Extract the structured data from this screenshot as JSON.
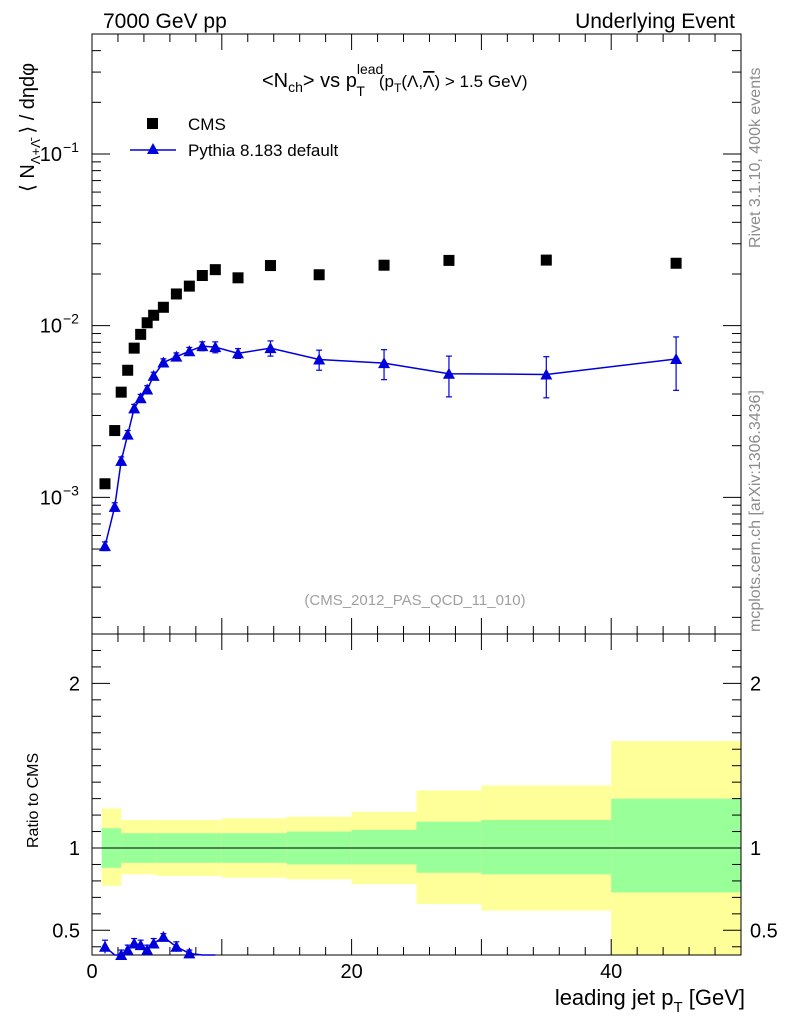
{
  "header": {
    "left": "7000 GeV pp",
    "right": "Underlying Event"
  },
  "side": {
    "rivet": "Rivet 3.1.10,  400k events",
    "mcplots": "mcplots.cern.ch [arXiv:1306.3436]"
  },
  "chart_data": {
    "type": "scatter",
    "title": "<N_ch> vs p_T^lead (p_T(Λ,Λ̄) > 1.5 GeV)",
    "analysis": "(CMS_2012_PAS_QCD_11_010)",
    "xlabel": "leading jet p_T [GeV]",
    "ylabel_main": "⟨ N_Λ+Λ̄ ⟩ / dηdφ",
    "ylabel_ratio": "Ratio to CMS",
    "xlim": [
      0,
      50
    ],
    "ylim_main": [
      0.00016,
      0.5
    ],
    "yscale_main": "log",
    "ylim_ratio": [
      0.35,
      2.3
    ],
    "x_ticks": [
      "0",
      "20",
      "40"
    ],
    "main_y_ticks": [
      {
        "value": 0.1,
        "base": "10",
        "exp": "−1"
      },
      {
        "value": 0.01,
        "base": "10",
        "exp": "−2"
      },
      {
        "value": 0.001,
        "base": "10",
        "exp": "−3"
      }
    ],
    "ratio_y_ticks": [
      "0.5",
      "1",
      "2"
    ],
    "legend": {
      "position": "top-left",
      "entries": [
        {
          "label": "CMS",
          "marker": "square",
          "color": "#000000"
        },
        {
          "label": "Pythia 8.183 default",
          "marker": "triangle",
          "color": "#0000dd"
        }
      ]
    },
    "series": [
      {
        "name": "CMS",
        "color": "#000000",
        "x": [
          1.0,
          1.75,
          2.25,
          2.75,
          3.25,
          3.75,
          4.25,
          4.75,
          5.5,
          6.5,
          7.5,
          8.5,
          9.5,
          11.25,
          13.75,
          17.5,
          22.5,
          27.5,
          35,
          45
        ],
        "y": [
          0.0012,
          0.00245,
          0.0041,
          0.0055,
          0.0074,
          0.0089,
          0.0104,
          0.0115,
          0.0128,
          0.0153,
          0.017,
          0.0196,
          0.0212,
          0.019,
          0.0224,
          0.0198,
          0.0225,
          0.024,
          0.0241,
          0.0231
        ]
      },
      {
        "name": "Pythia 8.183 default",
        "color": "#0000dd",
        "x": [
          1.0,
          1.75,
          2.25,
          2.75,
          3.25,
          3.75,
          4.25,
          4.75,
          5.5,
          6.5,
          7.5,
          8.5,
          9.5,
          11.25,
          13.75,
          17.5,
          22.5,
          27.5,
          35,
          45
        ],
        "y": [
          0.00052,
          0.00088,
          0.00163,
          0.00232,
          0.0033,
          0.00378,
          0.00425,
          0.0051,
          0.0061,
          0.0066,
          0.0071,
          0.0076,
          0.0075,
          0.0069,
          0.0074,
          0.00635,
          0.00605,
          0.00525,
          0.0052,
          0.0064
        ],
        "yerr": [
          3e-05,
          5e-05,
          9e-05,
          0.00013,
          0.00018,
          0.0002,
          0.00022,
          0.00026,
          0.00031,
          0.00034,
          0.00037,
          0.00045,
          0.00055,
          0.00045,
          0.00075,
          0.00085,
          0.0012,
          0.0014,
          0.0014,
          0.0022
        ]
      }
    ],
    "ratio_series": {
      "name": "Pythia 8.183 default",
      "color": "#0000dd",
      "x": [
        1.0,
        1.75,
        2.25,
        2.75,
        3.25,
        3.75,
        4.25,
        4.75,
        5.5,
        6.5,
        7.5,
        8.5,
        9.5
      ],
      "y": [
        0.4,
        0.33,
        0.35,
        0.38,
        0.42,
        0.41,
        0.38,
        0.42,
        0.46,
        0.4,
        0.36,
        0.33,
        0.32
      ],
      "yerr": [
        0.04,
        0.02,
        0.03,
        0.03,
        0.03,
        0.03,
        0.03,
        0.03,
        0.02,
        0.03,
        0.02,
        0.02,
        0.02
      ]
    },
    "ratio_bands": [
      {
        "x0": 0.75,
        "x1": 2.25,
        "inner": [
          0.88,
          1.12
        ],
        "outer": [
          0.77,
          1.24
        ]
      },
      {
        "x0": 2.25,
        "x1": 5,
        "inner": [
          0.91,
          1.09
        ],
        "outer": [
          0.84,
          1.17
        ]
      },
      {
        "x0": 5,
        "x1": 10,
        "inner": [
          0.91,
          1.09
        ],
        "outer": [
          0.83,
          1.17
        ]
      },
      {
        "x0": 10,
        "x1": 15,
        "inner": [
          0.91,
          1.09
        ],
        "outer": [
          0.82,
          1.18
        ]
      },
      {
        "x0": 15,
        "x1": 20,
        "inner": [
          0.9,
          1.1
        ],
        "outer": [
          0.81,
          1.19
        ]
      },
      {
        "x0": 20,
        "x1": 25,
        "inner": [
          0.9,
          1.11
        ],
        "outer": [
          0.78,
          1.22
        ]
      },
      {
        "x0": 25,
        "x1": 30,
        "inner": [
          0.85,
          1.16
        ],
        "outer": [
          0.66,
          1.35
        ]
      },
      {
        "x0": 30,
        "x1": 40,
        "inner": [
          0.84,
          1.17
        ],
        "outer": [
          0.62,
          1.38
        ]
      },
      {
        "x0": 40,
        "x1": 50,
        "inner": [
          0.73,
          1.3
        ],
        "outer": [
          0.35,
          1.65
        ]
      }
    ],
    "band_colors": {
      "inner": "#99ff99",
      "outer": "#ffff99"
    }
  }
}
